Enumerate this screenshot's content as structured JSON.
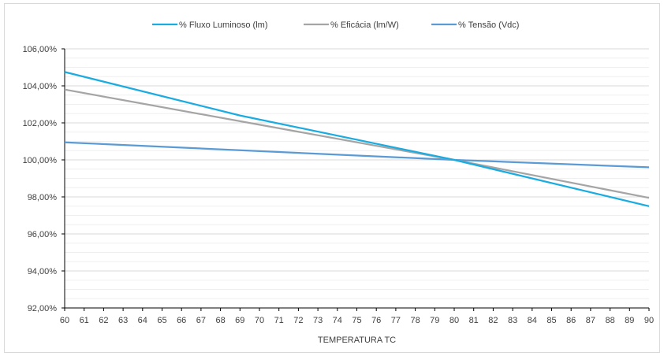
{
  "chart_data": {
    "type": "line",
    "title": "",
    "xlabel": "TEMPERATURA TC",
    "ylabel": "",
    "x": [
      60,
      61,
      62,
      63,
      64,
      65,
      66,
      67,
      68,
      69,
      70,
      71,
      72,
      73,
      74,
      75,
      76,
      77,
      78,
      79,
      80,
      81,
      82,
      83,
      84,
      85,
      86,
      87,
      88,
      89,
      90
    ],
    "xlim": [
      60,
      90
    ],
    "ylim": [
      92,
      106
    ],
    "y_ticks": [
      92,
      94,
      96,
      98,
      100,
      102,
      104,
      106
    ],
    "y_tick_labels": [
      "92,00%",
      "94,00%",
      "96,00%",
      "98,00%",
      "100,00%",
      "102,00%",
      "104,00%",
      "106,00%"
    ],
    "x_tick_labels": [
      "60",
      "61",
      "62",
      "63",
      "64",
      "65",
      "66",
      "67",
      "68",
      "69",
      "70",
      "71",
      "72",
      "73",
      "74",
      "75",
      "76",
      "77",
      "78",
      "79",
      "80",
      "81",
      "82",
      "83",
      "84",
      "85",
      "86",
      "87",
      "88",
      "89",
      "90"
    ],
    "grid": "horizontal",
    "legend_position": "top",
    "series": [
      {
        "name": "% Fluxo Luminoso (lm)",
        "color": "#1aabe0",
        "points": [
          [
            60,
            104.75
          ],
          [
            69,
            102.4
          ],
          [
            80,
            100.0
          ],
          [
            90,
            97.5
          ]
        ]
      },
      {
        "name": "% Eficácia (lm/W)",
        "color": "#a5a5a5",
        "points": [
          [
            60,
            103.8
          ],
          [
            80,
            100.0
          ],
          [
            90,
            97.95
          ]
        ]
      },
      {
        "name": "% Tensão (Vdc)",
        "color": "#5b9bd5",
        "points": [
          [
            60,
            100.95
          ],
          [
            80,
            100.0
          ],
          [
            90,
            99.6
          ]
        ]
      }
    ]
  }
}
